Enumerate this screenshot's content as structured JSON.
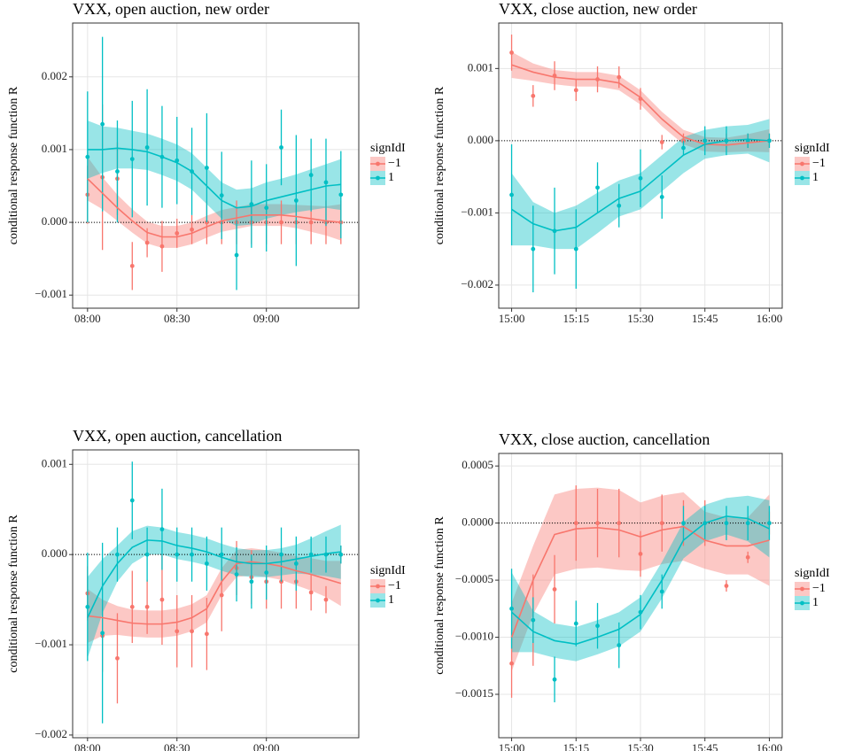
{
  "chart_data": [
    {
      "type": "line",
      "title": "VXX, open auction, new order",
      "ylabel": "conditional response function R",
      "legend_title": "signIdI",
      "x": [
        "08:00",
        "08:05",
        "08:10",
        "08:15",
        "08:20",
        "08:25",
        "08:30",
        "08:35",
        "08:40",
        "08:45",
        "08:50",
        "08:55",
        "09:00",
        "09:05",
        "09:10",
        "09:15",
        "09:20",
        "09:25"
      ],
      "xlim": [
        "07:55",
        "09:31"
      ],
      "xticks": [
        "08:00",
        "08:30",
        "09:00"
      ],
      "ylim": [
        -0.00118,
        0.00274
      ],
      "yticks": [
        {
          "value": -0.001,
          "label": "−0.001"
        },
        {
          "value": 0,
          "label": "0.000"
        },
        0.001,
        0.002
      ],
      "hline": 0,
      "grid": true,
      "series": [
        {
          "name": "−1",
          "color": "#F8766D",
          "values": [
            0.00038,
            0.00062,
            0.0006,
            -0.0006,
            -0.00028,
            -0.00033,
            -0.00015,
            -0.0001,
            0,
            0,
            0,
            0,
            0,
            0,
            0,
            0,
            0,
            0
          ],
          "errors": [
            0.0004,
            0.001,
            0.0005,
            0.00033,
            0.0002,
            0.00035,
            0.0002,
            0.0002,
            0.0003,
            0.0003,
            0.0003,
            0.0003,
            0.0003,
            0.0003,
            0.0003,
            0.0003,
            0.0003,
            0.0003
          ],
          "smooth": [
            0.0006,
            0.0004,
            0.0002,
            2e-05,
            -0.00014,
            -0.0002,
            -0.0002,
            -0.00015,
            -6e-05,
            2e-05,
            6e-05,
            0.0001,
            0.0001,
            0.0001,
            8e-05,
            5e-05,
            2e-05,
            0
          ],
          "se": [
            0.0003,
            0.00022,
            0.00018,
            0.00016,
            0.00015,
            0.00015,
            0.00015,
            0.00015,
            0.00015,
            0.00015,
            0.00015,
            0.00015,
            0.00015,
            0.00015,
            0.00016,
            0.00018,
            0.0002,
            0.00025
          ]
        },
        {
          "name": "1",
          "color": "#00BFC4",
          "values": [
            0.0009,
            0.00135,
            0.0007,
            0.00087,
            0.00103,
            0.0009,
            0.00085,
            0.0007,
            0.00075,
            0.00037,
            -0.00045,
            0.00025,
            0.0002,
            0.00103,
            0.0003,
            0.00065,
            0.00055,
            0.00038
          ],
          "errors": [
            0.0009,
            0.0012,
            0.0007,
            0.0008,
            0.0008,
            0.0007,
            0.0006,
            0.0006,
            0.00075,
            0.0006,
            0.00048,
            0.0006,
            0.0006,
            0.00052,
            0.0009,
            0.0005,
            0.0006,
            0.0006
          ],
          "smooth": [
            0.001,
            0.001,
            0.00102,
            0.001,
            0.00097,
            0.0009,
            0.00082,
            0.0007,
            0.0005,
            0.0003,
            0.0002,
            0.00022,
            0.0003,
            0.00035,
            0.0004,
            0.00045,
            0.0005,
            0.00052
          ],
          "se": [
            0.0004,
            0.00032,
            0.00028,
            0.00026,
            0.00025,
            0.00025,
            0.00025,
            0.00025,
            0.00025,
            0.00025,
            0.00025,
            0.00025,
            0.00025,
            0.00025,
            0.00026,
            0.00028,
            0.0003,
            0.00035
          ]
        }
      ]
    },
    {
      "type": "line",
      "title": "VXX, close auction, new order",
      "ylabel": "conditional response function R",
      "legend_title": "signIdI",
      "x": [
        "15:00",
        "15:05",
        "15:10",
        "15:15",
        "15:20",
        "15:25",
        "15:30",
        "15:35",
        "15:40",
        "15:45",
        "15:50",
        "15:55",
        "16:00"
      ],
      "xlim": [
        "14:57",
        "16:03"
      ],
      "xticks": [
        "15:00",
        "15:15",
        "15:30",
        "15:45",
        "16:00"
      ],
      "ylim": [
        -0.00232,
        0.00163
      ],
      "yticks": [
        {
          "value": -0.002,
          "label": "−0.002"
        },
        {
          "value": -0.001,
          "label": "−0.001"
        },
        {
          "value": 0,
          "label": "0.000"
        },
        0.001
      ],
      "hline": 0,
      "grid": true,
      "series": [
        {
          "name": "−1",
          "color": "#F8766D",
          "values": [
            0.00122,
            0.00062,
            0.0009,
            0.0007,
            0.00085,
            0.00088,
            0.00058,
            -2e-05,
            0,
            0,
            0,
            0,
            0
          ],
          "errors": [
            0.00025,
            0.00015,
            0.0002,
            0.00015,
            0.00018,
            0.00015,
            0.00015,
            0.0001,
            0.0001,
            0.0001,
            0.0001,
            0.0001,
            0.0001
          ],
          "smooth": [
            0.00105,
            0.00095,
            0.00088,
            0.00085,
            0.00085,
            0.0008,
            0.0006,
            0.0003,
            5e-05,
            -5e-05,
            -6e-05,
            -3e-05,
            0
          ],
          "se": [
            0.00018,
            0.00012,
            0.0001,
            0.0001,
            0.0001,
            0.0001,
            0.0001,
            0.0001,
            0.0001,
            0.0001,
            0.0001,
            0.00012,
            0.00016
          ]
        },
        {
          "name": "1",
          "color": "#00BFC4",
          "values": [
            -0.00075,
            -0.0015,
            -0.00125,
            -0.0015,
            -0.00065,
            -0.0009,
            -0.00052,
            -0.00078,
            -0.0001,
            0,
            0,
            0,
            0
          ],
          "errors": [
            0.0007,
            0.0006,
            0.0006,
            0.00055,
            0.00035,
            0.0003,
            0.0004,
            0.0003,
            0.0001,
            0.0002,
            0.0002,
            0.0001,
            0.0001
          ],
          "smooth": [
            -0.00095,
            -0.00115,
            -0.00125,
            -0.0012,
            -0.001,
            -0.0008,
            -0.0007,
            -0.00045,
            -0.0002,
            -5e-05,
            0,
            2e-05,
            0
          ],
          "se": [
            0.0005,
            0.0003,
            0.00025,
            0.0003,
            0.00028,
            0.00025,
            0.00025,
            0.00025,
            0.00025,
            0.0002,
            0.0002,
            0.0002,
            0.0003
          ]
        }
      ]
    },
    {
      "type": "line",
      "title": "VXX, open auction, cancellation",
      "ylabel": "conditional response function R",
      "legend_title": "signIdI",
      "x": [
        "08:00",
        "08:05",
        "08:10",
        "08:15",
        "08:20",
        "08:25",
        "08:30",
        "08:35",
        "08:40",
        "08:45",
        "08:50",
        "08:55",
        "09:00",
        "09:05",
        "09:10",
        "09:15",
        "09:20",
        "09:25"
      ],
      "xlim": [
        "07:55",
        "09:31"
      ],
      "xticks": [
        "08:00",
        "08:30",
        "09:00"
      ],
      "ylim": [
        -0.00203,
        0.00116
      ],
      "yticks": [
        {
          "value": -0.002,
          "label": "−0.002"
        },
        {
          "value": -0.001,
          "label": "−0.001"
        },
        {
          "value": 0,
          "label": "0.000"
        },
        0.001
      ],
      "hline": 0,
      "grid": true,
      "series": [
        {
          "name": "−1",
          "color": "#F8766D",
          "values": [
            -0.00043,
            -0.0009,
            -0.00115,
            -0.00058,
            -0.00058,
            -0.0005,
            -0.00085,
            -0.00085,
            -0.00088,
            -0.00045,
            -0.00015,
            -0.00025,
            -0.0003,
            -0.0003,
            -0.0003,
            -0.00042,
            -0.0005,
            0
          ],
          "errors": [
            0.0003,
            0.0004,
            0.0005,
            0.0004,
            0.0003,
            0.0005,
            0.0004,
            0.0004,
            0.0004,
            0.0004,
            0.0003,
            0.0003,
            0.0003,
            0.0003,
            0.0003,
            0.0002,
            0.00015,
            0.0001
          ],
          "smooth": [
            -0.00068,
            -0.0007,
            -0.00073,
            -0.00076,
            -0.00077,
            -0.00077,
            -0.00075,
            -0.0007,
            -0.0006,
            -0.0003,
            -0.0001,
            -8e-05,
            -0.0001,
            -0.00013,
            -0.00018,
            -0.00022,
            -0.00027,
            -0.00032
          ],
          "se": [
            0.0003,
            0.0002,
            0.00016,
            0.00015,
            0.00015,
            0.00015,
            0.00015,
            0.00015,
            0.00015,
            0.00015,
            0.00015,
            0.00015,
            0.00015,
            0.00015,
            0.00016,
            0.00018,
            0.0002,
            0.00025
          ]
        },
        {
          "name": "1",
          "color": "#00BFC4",
          "values": [
            -0.00058,
            -0.00087,
            0,
            0.0006,
            0,
            0.00028,
            0,
            0,
            -0.0001,
            0,
            -0.00022,
            -0.0003,
            -0.0002,
            0,
            -0.0001,
            0,
            0,
            0
          ],
          "errors": [
            0.0006,
            0.001,
            0.0003,
            0.00043,
            0.0003,
            0.00045,
            0.0003,
            0.0003,
            0.0003,
            0.0003,
            0.0003,
            0.0003,
            0.0003,
            0.0003,
            0.0003,
            0.0002,
            0.0002,
            0.0001
          ],
          "smooth": [
            -0.0007,
            -0.00035,
            -0.0001,
            8e-05,
            0.00016,
            0.00015,
            0.0001,
            7e-05,
            3e-05,
            -3e-05,
            -8e-05,
            -0.0001,
            -0.0001,
            -8e-05,
            -5e-05,
            -2e-05,
            1e-05,
            3e-05
          ],
          "se": [
            0.00045,
            0.0003,
            0.0002,
            0.00018,
            0.00016,
            0.00015,
            0.00015,
            0.00015,
            0.00015,
            0.00015,
            0.00015,
            0.00015,
            0.00015,
            0.00015,
            0.00016,
            0.0002,
            0.00025,
            0.0003
          ]
        }
      ]
    },
    {
      "type": "line",
      "title": "VXX, close auction, cancellation",
      "ylabel": "conditional response function R",
      "legend_title": "signIdI",
      "x": [
        "15:00",
        "15:05",
        "15:10",
        "15:15",
        "15:20",
        "15:25",
        "15:30",
        "15:35",
        "15:40",
        "15:45",
        "15:50",
        "15:55",
        "16:00"
      ],
      "xlim": [
        "14:57",
        "16:03"
      ],
      "xticks": [
        "15:00",
        "15:15",
        "15:30",
        "15:45",
        "16:00"
      ],
      "ylim": [
        -0.00188,
        0.00061
      ],
      "yticks": [
        {
          "value": -0.0015,
          "label": "−0.0015"
        },
        {
          "value": -0.001,
          "label": "−0.0010"
        },
        {
          "value": -0.0005,
          "label": "−0.0005"
        },
        {
          "value": 0,
          "label": "0.0000"
        },
        0.0005
      ],
      "hline": 0,
      "grid": true,
      "series": [
        {
          "name": "−1",
          "color": "#F8766D",
          "values": [
            -0.00123,
            -0.00085,
            -0.00058,
            0,
            0,
            0,
            -0.00027,
            0,
            0,
            0,
            -0.00055,
            -0.0003,
            0
          ],
          "errors": [
            0.0003,
            0.0004,
            0.0003,
            0.00033,
            0.0003,
            0.0003,
            0.0002,
            0.00025,
            0.0002,
            0.0002,
            5e-05,
            5e-05,
            0.0001
          ],
          "smooth": [
            -0.001,
            -0.0005,
            -0.0001,
            -5e-05,
            -4e-05,
            -6e-05,
            -0.00012,
            -6e-05,
            -3e-05,
            -0.00015,
            -0.0002,
            -0.0002,
            -0.00015
          ],
          "se": [
            0.0003,
            0.0003,
            0.00035,
            0.00035,
            0.00035,
            0.00035,
            0.0003,
            0.0003,
            0.0003,
            0.00025,
            0.00025,
            0.00025,
            0.0004
          ]
        },
        {
          "name": "1",
          "color": "#00BFC4",
          "values": [
            -0.00075,
            -0.00085,
            -0.00137,
            -0.00088,
            -0.0009,
            -0.00107,
            -0.00078,
            -0.0006,
            0,
            0,
            0,
            0,
            0
          ],
          "errors": [
            0.00035,
            0.0002,
            0.0002,
            0.0002,
            0.0002,
            0.0002,
            0.00015,
            0.00015,
            0.00015,
            0.00015,
            0.00015,
            0.00015,
            0.00015
          ],
          "smooth": [
            -0.00078,
            -0.00095,
            -0.00103,
            -0.00106,
            -0.001,
            -0.00093,
            -0.0008,
            -0.0005,
            -0.00015,
            0,
            6e-05,
            4e-05,
            -5e-05
          ],
          "se": [
            0.00035,
            0.00018,
            0.00015,
            0.00015,
            0.00015,
            0.00015,
            0.00015,
            0.00016,
            0.00016,
            0.00016,
            0.00016,
            0.0002,
            0.00025
          ]
        }
      ]
    }
  ]
}
